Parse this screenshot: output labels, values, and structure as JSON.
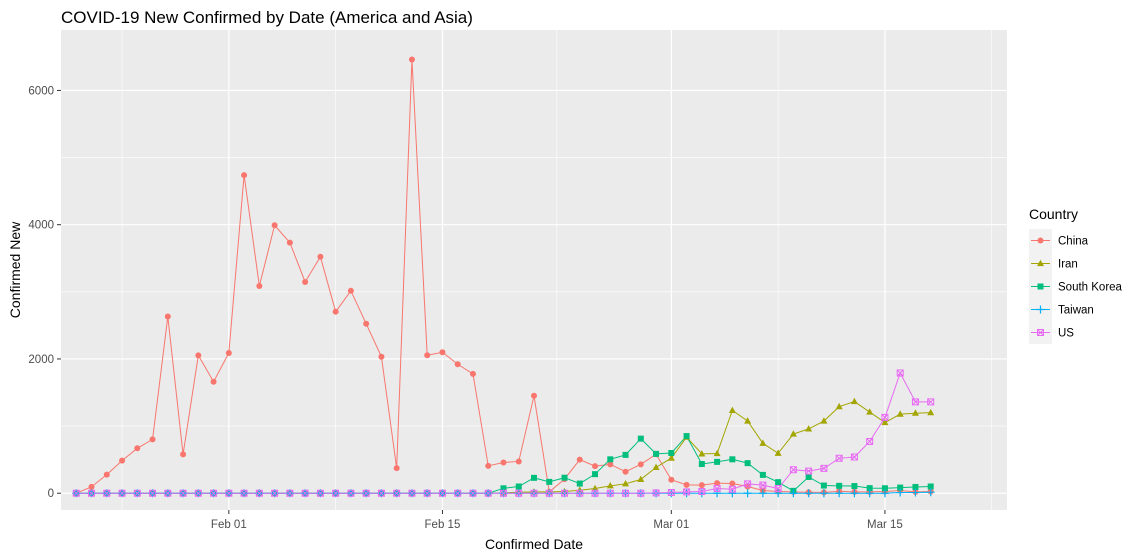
{
  "chart_data": {
    "type": "line",
    "title": "COVID-19 New Confirmed by Date (America and Asia)",
    "xlabel": "Confirmed Date",
    "ylabel": "Confirmed New",
    "x_start": "2020-01-22",
    "x_ticks": [
      {
        "date": "2020-02-01",
        "label": "Feb 01"
      },
      {
        "date": "2020-02-15",
        "label": "Feb 15"
      },
      {
        "date": "2020-03-01",
        "label": "Mar 01"
      },
      {
        "date": "2020-03-15",
        "label": "Mar 15"
      }
    ],
    "xlim": [
      "2020-01-21",
      "2020-03-23"
    ],
    "ylim": [
      -250,
      6900
    ],
    "y_ticks": [
      0,
      2000,
      4000,
      6000
    ],
    "y_tick_labels": [
      "0",
      "2000",
      "4000",
      "6000"
    ],
    "grid": true,
    "panel_background": "#ebebeb",
    "legend": {
      "title": "Country",
      "position": "right"
    },
    "series": [
      {
        "name": "China",
        "color": "#F8766D",
        "marker": "circle",
        "values": [
          0,
          95,
          277,
          486,
          669,
          802,
          2632,
          578,
          2054,
          1661,
          2089,
          4739,
          3086,
          3991,
          3733,
          3147,
          3523,
          2704,
          3015,
          2525,
          2032,
          373,
          6461,
          2055,
          2100,
          1921,
          1777,
          408,
          458,
          473,
          1451,
          20,
          210,
          500,
          404,
          430,
          320,
          430,
          580,
          200,
          125,
          120,
          150,
          145,
          100,
          40,
          25,
          20,
          15,
          12,
          30,
          20,
          20,
          25,
          40,
          20,
          25
        ]
      },
      {
        "name": "Iran",
        "color": "#A3A500",
        "marker": "triangle",
        "values": [
          0,
          0,
          0,
          0,
          0,
          0,
          0,
          0,
          0,
          0,
          0,
          0,
          0,
          0,
          0,
          0,
          0,
          0,
          0,
          0,
          0,
          0,
          0,
          0,
          0,
          0,
          0,
          0,
          5,
          15,
          20,
          20,
          25,
          45,
          70,
          110,
          140,
          205,
          385,
          523,
          835,
          586,
          591,
          1234,
          1076,
          743,
          595,
          881,
          958,
          1075,
          1289,
          1365,
          1209,
          1053,
          1178,
          1192,
          1200
        ]
      },
      {
        "name": "South Korea",
        "color": "#00BF7D",
        "marker": "square",
        "values": [
          0,
          0,
          0,
          0,
          0,
          0,
          0,
          0,
          0,
          0,
          0,
          0,
          0,
          0,
          0,
          0,
          0,
          0,
          0,
          0,
          0,
          0,
          0,
          0,
          0,
          0,
          0,
          0,
          73,
          100,
          229,
          169,
          231,
          144,
          284,
          505,
          571,
          813,
          586,
          599,
          851,
          435,
          467,
          505,
          448,
          273,
          165,
          35,
          242,
          114,
          110,
          107,
          76,
          74,
          84,
          93,
          100
        ]
      },
      {
        "name": "Taiwan",
        "color": "#00B0F6",
        "marker": "plus",
        "values": [
          0,
          0,
          0,
          0,
          0,
          0,
          0,
          0,
          0,
          0,
          0,
          0,
          0,
          0,
          0,
          0,
          0,
          0,
          0,
          0,
          0,
          0,
          0,
          0,
          0,
          0,
          0,
          0,
          0,
          0,
          0,
          0,
          0,
          0,
          0,
          0,
          0,
          0,
          0,
          0,
          0,
          0,
          0,
          0,
          0,
          0,
          0,
          0,
          0,
          0,
          0,
          0,
          0,
          0,
          10,
          10,
          15
        ]
      },
      {
        "name": "US",
        "color": "#E76BF3",
        "marker": "square-x",
        "values": [
          0,
          0,
          0,
          0,
          0,
          0,
          0,
          0,
          0,
          0,
          0,
          0,
          0,
          0,
          0,
          0,
          0,
          0,
          0,
          0,
          0,
          0,
          0,
          0,
          0,
          0,
          0,
          0,
          0,
          0,
          0,
          0,
          0,
          0,
          0,
          0,
          0,
          0,
          5,
          10,
          20,
          25,
          70,
          60,
          140,
          120,
          70,
          350,
          330,
          370,
          520,
          540,
          770,
          1130,
          1790,
          1360,
          1360
        ]
      }
    ]
  }
}
